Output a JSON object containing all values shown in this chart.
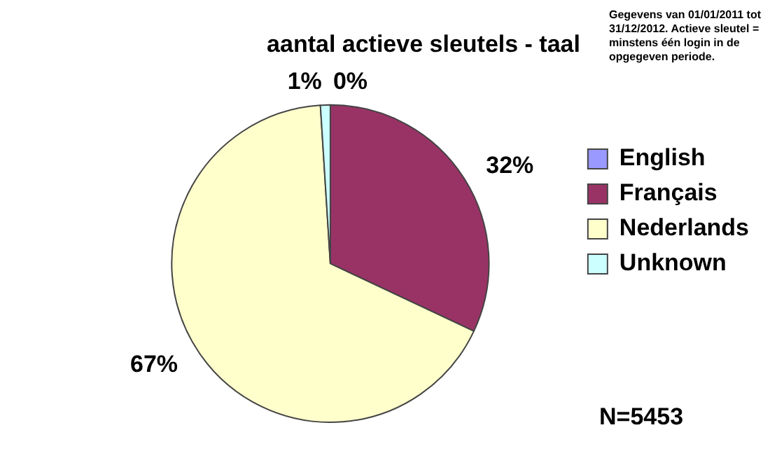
{
  "chart_data": {
    "type": "pie",
    "title": "aantal actieve sleutels - taal",
    "categories": [
      "English",
      "Français",
      "Nederlands",
      "Unknown"
    ],
    "values": [
      0,
      32,
      67,
      1
    ],
    "value_labels": [
      "0%",
      "32%",
      "67%",
      "1%"
    ],
    "colors": [
      "#9999ff",
      "#993366",
      "#ffffcc",
      "#ccffff"
    ],
    "legend": "right",
    "annotations": [
      "Gegevens van 01/01/2011 tot 31/12/2012.  Actieve sleutel = minstens één login in de opgegeven periode.",
      "N=5453"
    ]
  }
}
